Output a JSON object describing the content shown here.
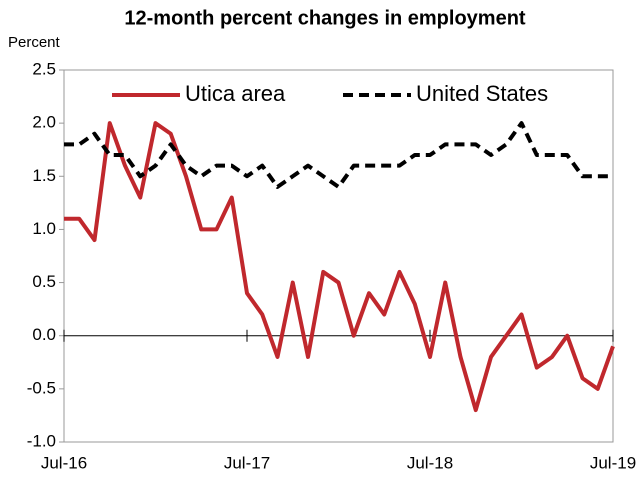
{
  "chart_data": {
    "type": "line",
    "title": "12-month percent changes in employment",
    "y_label": "Percent",
    "categories": [
      "Jul-16",
      null,
      null,
      null,
      null,
      null,
      null,
      null,
      null,
      null,
      null,
      null,
      "Jul-17",
      null,
      null,
      null,
      null,
      null,
      null,
      null,
      null,
      null,
      null,
      null,
      "Jul-18",
      null,
      null,
      null,
      null,
      null,
      null,
      null,
      null,
      null,
      null,
      null,
      "Jul-19"
    ],
    "series": [
      {
        "name": "Utica area",
        "color": "#c0282d",
        "dash": false,
        "values": [
          1.1,
          1.1,
          0.9,
          2.0,
          1.6,
          1.3,
          2.0,
          1.9,
          1.5,
          1.0,
          1.0,
          1.3,
          0.4,
          0.2,
          -0.2,
          0.5,
          -0.2,
          0.6,
          0.5,
          0.0,
          0.4,
          0.2,
          0.6,
          0.3,
          -0.2,
          0.5,
          -0.2,
          -0.7,
          -0.2,
          0.0,
          0.2,
          -0.3,
          -0.2,
          0.0,
          -0.4,
          -0.5,
          -0.1
        ]
      },
      {
        "name": "United States",
        "color": "#000000",
        "dash": true,
        "values": [
          1.8,
          1.8,
          1.9,
          1.7,
          1.7,
          1.5,
          1.6,
          1.8,
          1.6,
          1.5,
          1.6,
          1.6,
          1.5,
          1.6,
          1.4,
          1.5,
          1.6,
          1.5,
          1.4,
          1.6,
          1.6,
          1.6,
          1.6,
          1.7,
          1.7,
          1.8,
          1.8,
          1.8,
          1.7,
          1.8,
          2.0,
          1.7,
          1.7,
          1.7,
          1.5,
          1.5,
          1.5
        ]
      }
    ],
    "ylim": [
      -1,
      2.5
    ],
    "yticks": [
      {
        "value": -1,
        "label": "-1.0"
      },
      -0.5,
      {
        "value": 0,
        "label": "0.0"
      },
      0.5,
      {
        "value": 1,
        "label": "1.0"
      },
      1.5,
      {
        "value": 2,
        "label": "2.0"
      },
      2.5
    ],
    "legend": "top"
  }
}
